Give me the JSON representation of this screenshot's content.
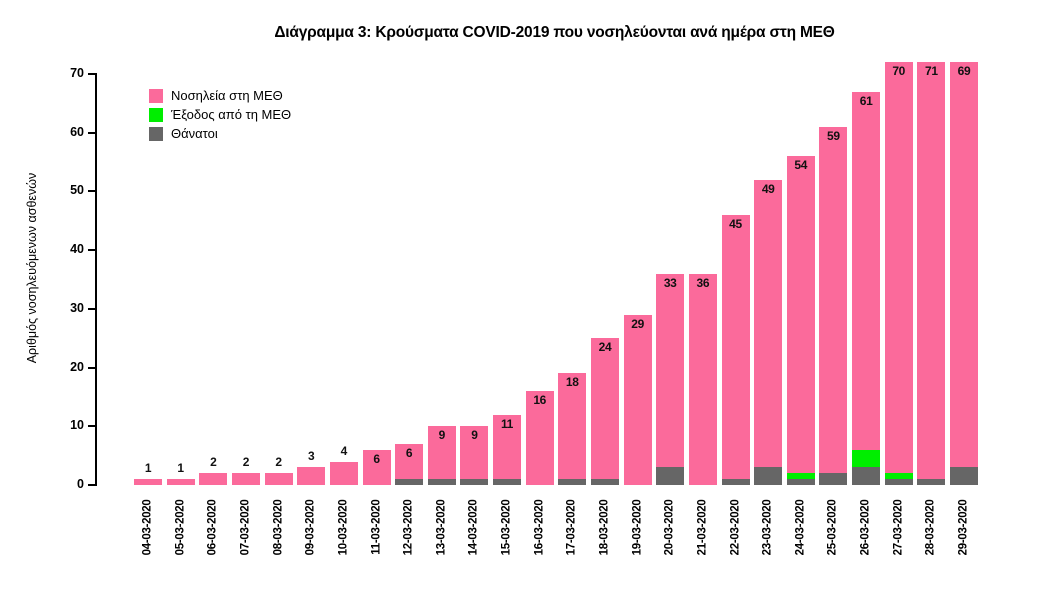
{
  "title": "Διάγραμμα 3: Κρούσματα COVID-2019 που νοσηλεύονται ανά ημέρα στη ΜΕΘ",
  "y_axis": {
    "label": "Αριθμός νοσηλευόμενων ασθενών",
    "ticks": [
      0,
      10,
      20,
      30,
      40,
      50,
      60,
      70
    ]
  },
  "legend": {
    "items": [
      {
        "label": "Νοσηλεία στη ΜΕΘ",
        "color": "#fb6a9b"
      },
      {
        "label": "Έξοδος από τη ΜΕΘ",
        "color": "#00ee00"
      },
      {
        "label": "Θάνατοι",
        "color": "#666666"
      }
    ]
  },
  "chart_data": {
    "type": "bar",
    "stacked": true,
    "title": "Διάγραμμα 3: Κρούσματα COVID-2019 που νοσηλεύονται ανά ημέρα στη ΜΕΘ",
    "xlabel": "",
    "ylabel": "Αριθμός νοσηλευόμενων ασθενών",
    "ylim": [
      0,
      70
    ],
    "grid": false,
    "legend_position": "top-left",
    "categories": [
      "04-03-2020",
      "05-03-2020",
      "06-03-2020",
      "07-03-2020",
      "08-03-2020",
      "09-03-2020",
      "10-03-2020",
      "11-03-2020",
      "12-03-2020",
      "13-03-2020",
      "14-03-2020",
      "15-03-2020",
      "16-03-2020",
      "17-03-2020",
      "18-03-2020",
      "19-03-2020",
      "20-03-2020",
      "21-03-2020",
      "22-03-2020",
      "23-03-2020",
      "24-03-2020",
      "25-03-2020",
      "26-03-2020",
      "27-03-2020",
      "28-03-2020",
      "29-03-2020"
    ],
    "stack_order_bottom_to_top": [
      "Θάνατοι",
      "Έξοδος από τη ΜΕΘ",
      "Νοσηλεία στη ΜΕΘ"
    ],
    "series": [
      {
        "name": "Θάνατοι",
        "color": "#666666",
        "values": [
          0,
          0,
          0,
          0,
          0,
          0,
          0,
          0,
          1,
          1,
          1,
          1,
          0,
          1,
          1,
          0,
          3,
          0,
          1,
          3,
          1,
          2,
          3,
          1,
          1,
          3
        ]
      },
      {
        "name": "Έξοδος από τη ΜΕΘ",
        "color": "#00ee00",
        "values": [
          0,
          0,
          0,
          0,
          0,
          0,
          0,
          0,
          0,
          0,
          0,
          0,
          0,
          0,
          0,
          0,
          0,
          0,
          0,
          0,
          1,
          0,
          3,
          1,
          0,
          0
        ]
      },
      {
        "name": "Νοσηλεία στη ΜΕΘ",
        "color": "#fb6a9b",
        "values": [
          1,
          1,
          2,
          2,
          2,
          3,
          4,
          6,
          6,
          9,
          9,
          11,
          16,
          18,
          24,
          29,
          33,
          36,
          45,
          49,
          54,
          59,
          61,
          70,
          71,
          69
        ]
      }
    ],
    "bar_labels": [
      1,
      1,
      2,
      2,
      2,
      3,
      4,
      6,
      6,
      9,
      9,
      11,
      16,
      18,
      24,
      29,
      33,
      36,
      45,
      49,
      54,
      59,
      61,
      70,
      71,
      69
    ],
    "bar_label_inside_threshold": 6
  }
}
